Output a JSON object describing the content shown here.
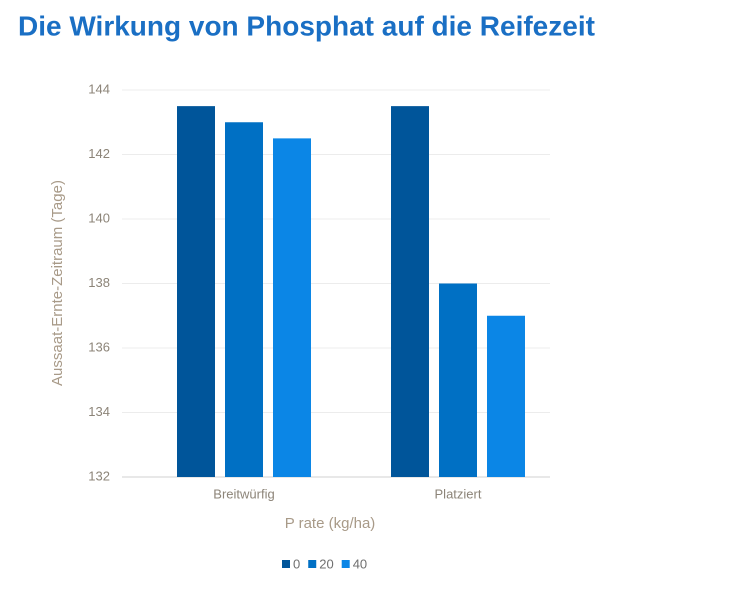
{
  "chart_data": {
    "type": "bar",
    "title": "Die Wirkung von Phosphat auf die Reifezeit",
    "x_label": "P rate  (kg/ha)",
    "y_label": "Aussaat-Ernte-Zeitraum (Tage)",
    "categories": [
      "Breitwürfig",
      "Platziert"
    ],
    "series": [
      {
        "name": "0",
        "color": "#00559a",
        "values": [
          143.5,
          143.5
        ]
      },
      {
        "name": "20",
        "color": "#0070c4",
        "values": [
          143,
          138
        ]
      },
      {
        "name": "40",
        "color": "#0b86e6",
        "values": [
          142.5,
          137
        ]
      }
    ],
    "ylim": [
      132,
      144
    ],
    "yticks": [
      132,
      134,
      136,
      138,
      140,
      142,
      144
    ],
    "grid": true
  }
}
